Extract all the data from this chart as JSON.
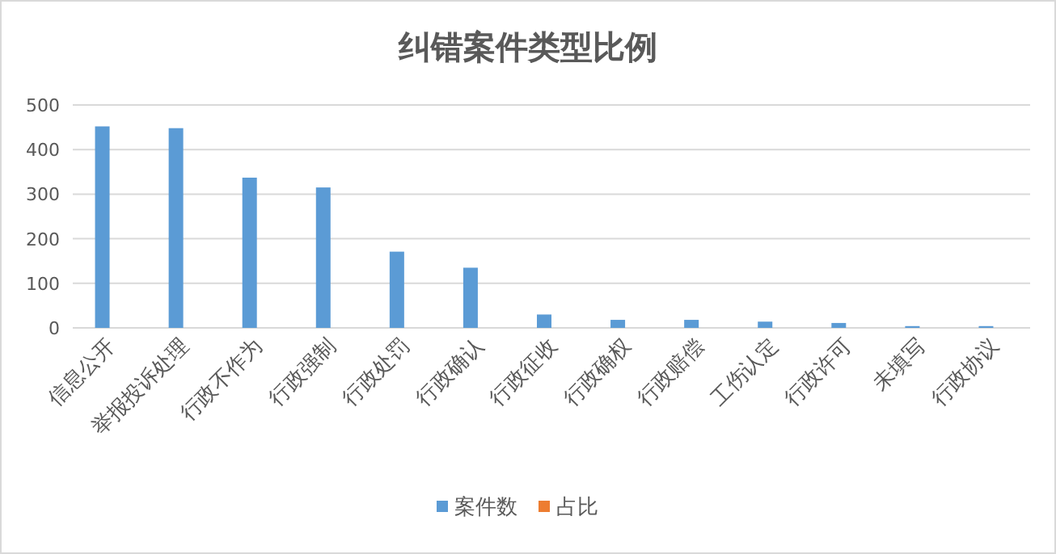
{
  "chart_data": {
    "type": "bar",
    "title": "纠错案件类型比例",
    "categories": [
      "信息公开",
      "举报投诉处理",
      "行政不作为",
      "行政强制",
      "行政处罚",
      "行政确认",
      "行政征收",
      "行政确权",
      "行政赔偿",
      "工伤认定",
      "行政许可",
      "未填写",
      "行政协议"
    ],
    "series": [
      {
        "name": "案件数",
        "color": "#5b9bd5",
        "values": [
          452,
          448,
          337,
          315,
          171,
          135,
          30,
          18,
          18,
          14,
          11,
          4,
          4
        ]
      },
      {
        "name": "占比",
        "color": "#ed7d31",
        "values": [
          null,
          null,
          null,
          null,
          null,
          null,
          null,
          null,
          null,
          null,
          null,
          null,
          null
        ]
      }
    ],
    "ylim": [
      0,
      500
    ],
    "yticks": [
      0,
      100,
      200,
      300,
      400,
      500
    ],
    "grid": "y",
    "legend": "bottom"
  }
}
